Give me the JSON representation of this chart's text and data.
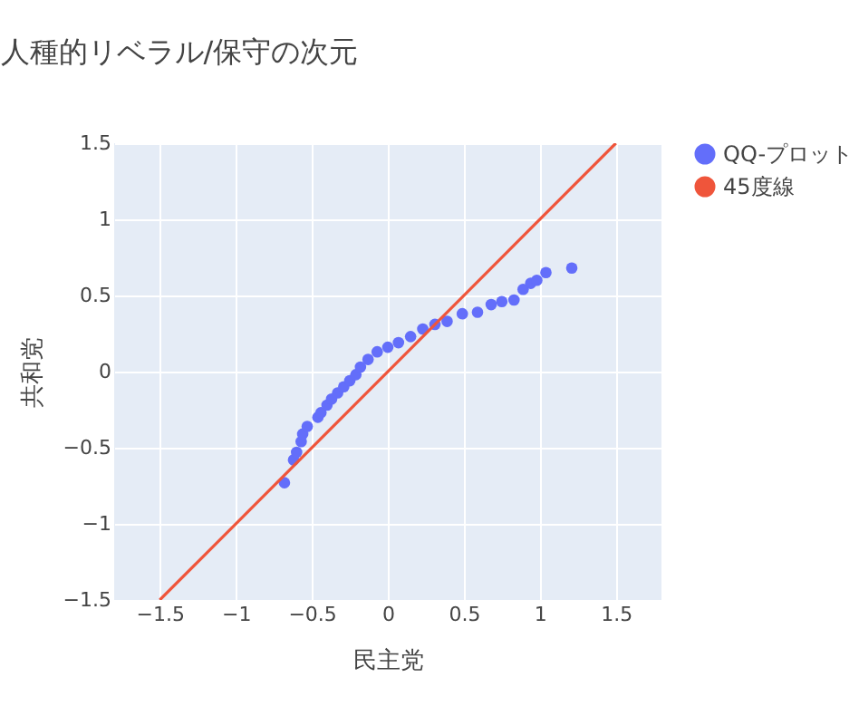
{
  "chart_data": {
    "type": "scatter",
    "title": "人種的リベラル/保守の次元",
    "xlabel": "民主党",
    "ylabel": "共和党",
    "xlim": [
      -1.8,
      1.8
    ],
    "ylim": [
      -1.5,
      1.5
    ],
    "xticks": [
      -1.5,
      -1,
      -0.5,
      0,
      0.5,
      1,
      1.5
    ],
    "yticks": [
      -1.5,
      -1,
      -0.5,
      0,
      0.5,
      1,
      1.5
    ],
    "grid": true,
    "legend": "top right",
    "series": [
      {
        "name": "QQ-プロット",
        "marker": "circle",
        "color": "#636efa",
        "x": [
          -0.68,
          -0.62,
          -0.6,
          -0.57,
          -0.56,
          -0.53,
          -0.46,
          -0.44,
          -0.4,
          -0.37,
          -0.33,
          -0.29,
          -0.25,
          -0.21,
          -0.18,
          -0.13,
          -0.07,
          0,
          0.07,
          0.15,
          0.23,
          0.31,
          0.39,
          0.49,
          0.59,
          0.68,
          0.75,
          0.83,
          0.89,
          0.94,
          0.98,
          1.04,
          1.21
        ],
        "values": [
          -0.73,
          -0.58,
          -0.53,
          -0.46,
          -0.41,
          -0.36,
          -0.3,
          -0.27,
          -0.22,
          -0.18,
          -0.14,
          -0.1,
          -0.06,
          -0.02,
          0.03,
          0.08,
          0.13,
          0.16,
          0.19,
          0.23,
          0.28,
          0.31,
          0.33,
          0.38,
          0.39,
          0.44,
          0.46,
          0.47,
          0.54,
          0.58,
          0.6,
          0.65,
          0.68
        ]
      },
      {
        "name": "45度線",
        "type": "line",
        "color": "#ef553b",
        "x": [
          -1.5,
          1.5
        ],
        "values": [
          -1.5,
          1.5
        ]
      }
    ]
  }
}
